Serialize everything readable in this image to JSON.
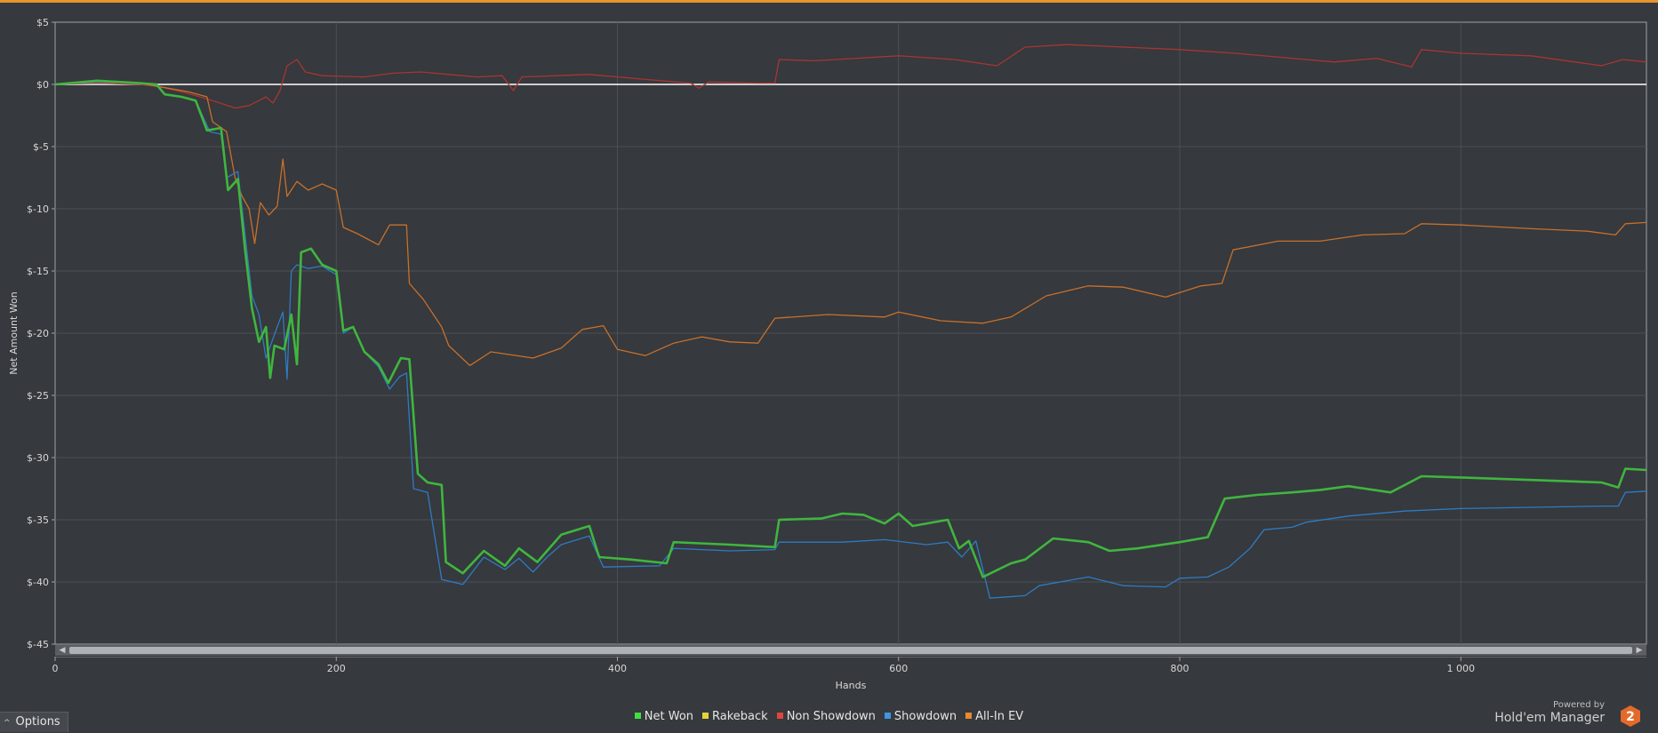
{
  "chart_data": {
    "type": "line",
    "xlabel": "Hands",
    "ylabel": "Net Amount Won",
    "xlim": [
      0,
      1132
    ],
    "ylim": [
      -45,
      5
    ],
    "x_ticks": [
      0,
      200,
      400,
      600,
      800,
      1000
    ],
    "x_tick_labels": [
      "0",
      "200",
      "400",
      "600",
      "800",
      "1 000"
    ],
    "y_ticks": [
      5,
      0,
      -5,
      -10,
      -15,
      -20,
      -25,
      -30,
      -35,
      -40,
      -45
    ],
    "y_tick_labels": [
      "$5",
      "$0",
      "$-5",
      "$-10",
      "$-15",
      "$-20",
      "$-25",
      "$-30",
      "$-35",
      "$-40",
      "$-45"
    ],
    "grid": true,
    "legend_position": "bottom-center",
    "series": [
      {
        "name": "Non Showdown",
        "color": "#a83532",
        "width": 1.3,
        "points": [
          [
            0,
            0
          ],
          [
            30,
            0.1
          ],
          [
            60,
            0
          ],
          [
            75,
            -0.2
          ],
          [
            90,
            -0.6
          ],
          [
            100,
            -0.9
          ],
          [
            112,
            -1.3
          ],
          [
            120,
            -1.6
          ],
          [
            128,
            -1.9
          ],
          [
            138,
            -1.7
          ],
          [
            145,
            -1.3
          ],
          [
            150,
            -1.0
          ],
          [
            155,
            -1.5
          ],
          [
            160,
            -0.5
          ],
          [
            165,
            1.5
          ],
          [
            172,
            2.0
          ],
          [
            178,
            1.0
          ],
          [
            190,
            0.7
          ],
          [
            220,
            0.6
          ],
          [
            240,
            0.9
          ],
          [
            260,
            1.0
          ],
          [
            300,
            0.6
          ],
          [
            318,
            0.7
          ],
          [
            326,
            -0.5
          ],
          [
            332,
            0.6
          ],
          [
            380,
            0.8
          ],
          [
            420,
            0.4
          ],
          [
            452,
            0.1
          ],
          [
            458,
            -0.3
          ],
          [
            465,
            0.2
          ],
          [
            500,
            0.1
          ],
          [
            512,
            0.1
          ],
          [
            515,
            2.0
          ],
          [
            540,
            1.9
          ],
          [
            570,
            2.1
          ],
          [
            600,
            2.3
          ],
          [
            640,
            2.0
          ],
          [
            670,
            1.5
          ],
          [
            690,
            3.0
          ],
          [
            720,
            3.2
          ],
          [
            760,
            3.0
          ],
          [
            800,
            2.8
          ],
          [
            840,
            2.5
          ],
          [
            880,
            2.1
          ],
          [
            910,
            1.8
          ],
          [
            940,
            2.1
          ],
          [
            965,
            1.4
          ],
          [
            972,
            2.8
          ],
          [
            1000,
            2.5
          ],
          [
            1050,
            2.3
          ],
          [
            1100,
            1.5
          ],
          [
            1115,
            2.0
          ],
          [
            1132,
            1.8
          ]
        ]
      },
      {
        "name": "All-In EV",
        "color": "#c8702b",
        "width": 1.3,
        "points": [
          [
            0,
            0
          ],
          [
            30,
            0.2
          ],
          [
            60,
            0.1
          ],
          [
            80,
            -0.3
          ],
          [
            95,
            -0.6
          ],
          [
            108,
            -1.0
          ],
          [
            112,
            -3.0
          ],
          [
            122,
            -3.8
          ],
          [
            128,
            -7.5
          ],
          [
            133,
            -9.0
          ],
          [
            138,
            -10.0
          ],
          [
            142,
            -12.8
          ],
          [
            146,
            -9.5
          ],
          [
            152,
            -10.5
          ],
          [
            158,
            -9.8
          ],
          [
            162,
            -6.0
          ],
          [
            165,
            -9.0
          ],
          [
            172,
            -7.8
          ],
          [
            180,
            -8.5
          ],
          [
            190,
            -8.0
          ],
          [
            200,
            -8.5
          ],
          [
            205,
            -11.5
          ],
          [
            215,
            -12.0
          ],
          [
            230,
            -12.9
          ],
          [
            238,
            -11.3
          ],
          [
            250,
            -11.3
          ],
          [
            252,
            -16.0
          ],
          [
            262,
            -17.3
          ],
          [
            275,
            -19.5
          ],
          [
            280,
            -21.0
          ],
          [
            295,
            -22.6
          ],
          [
            310,
            -21.5
          ],
          [
            340,
            -22.0
          ],
          [
            360,
            -21.2
          ],
          [
            375,
            -19.7
          ],
          [
            390,
            -19.4
          ],
          [
            400,
            -21.3
          ],
          [
            420,
            -21.8
          ],
          [
            440,
            -20.8
          ],
          [
            460,
            -20.3
          ],
          [
            480,
            -20.7
          ],
          [
            500,
            -20.8
          ],
          [
            512,
            -18.8
          ],
          [
            550,
            -18.5
          ],
          [
            590,
            -18.7
          ],
          [
            600,
            -18.3
          ],
          [
            630,
            -19.0
          ],
          [
            660,
            -19.2
          ],
          [
            680,
            -18.7
          ],
          [
            705,
            -17.0
          ],
          [
            735,
            -16.2
          ],
          [
            760,
            -16.3
          ],
          [
            790,
            -17.1
          ],
          [
            815,
            -16.2
          ],
          [
            830,
            -16.0
          ],
          [
            838,
            -13.3
          ],
          [
            870,
            -12.6
          ],
          [
            900,
            -12.6
          ],
          [
            930,
            -12.1
          ],
          [
            960,
            -12.0
          ],
          [
            972,
            -11.2
          ],
          [
            1000,
            -11.3
          ],
          [
            1050,
            -11.6
          ],
          [
            1090,
            -11.8
          ],
          [
            1110,
            -12.1
          ],
          [
            1117,
            -11.2
          ],
          [
            1132,
            -11.1
          ]
        ]
      },
      {
        "name": "Showdown",
        "color": "#2e7bc4",
        "width": 1.3,
        "points": [
          [
            0,
            0
          ],
          [
            30,
            0.2
          ],
          [
            60,
            0.1
          ],
          [
            72,
            0
          ],
          [
            78,
            -0.8
          ],
          [
            90,
            -1.0
          ],
          [
            100,
            -1.3
          ],
          [
            110,
            -3.8
          ],
          [
            118,
            -4.0
          ],
          [
            122,
            -7.5
          ],
          [
            130,
            -7.0
          ],
          [
            135,
            -12.0
          ],
          [
            140,
            -17.0
          ],
          [
            145,
            -18.5
          ],
          [
            150,
            -22.0
          ],
          [
            158,
            -19.5
          ],
          [
            162,
            -18.3
          ],
          [
            165,
            -23.7
          ],
          [
            168,
            -15.0
          ],
          [
            172,
            -14.5
          ],
          [
            180,
            -14.8
          ],
          [
            190,
            -14.6
          ],
          [
            200,
            -15.3
          ],
          [
            205,
            -20.0
          ],
          [
            212,
            -19.5
          ],
          [
            220,
            -21.5
          ],
          [
            230,
            -22.7
          ],
          [
            238,
            -24.5
          ],
          [
            245,
            -23.5
          ],
          [
            250,
            -23.2
          ],
          [
            255,
            -32.5
          ],
          [
            265,
            -32.8
          ],
          [
            275,
            -39.8
          ],
          [
            290,
            -40.2
          ],
          [
            305,
            -38.0
          ],
          [
            320,
            -39.0
          ],
          [
            330,
            -38.1
          ],
          [
            340,
            -39.2
          ],
          [
            350,
            -38.0
          ],
          [
            360,
            -37.0
          ],
          [
            380,
            -36.3
          ],
          [
            390,
            -38.8
          ],
          [
            430,
            -38.7
          ],
          [
            440,
            -37.3
          ],
          [
            480,
            -37.5
          ],
          [
            512,
            -37.4
          ],
          [
            515,
            -36.8
          ],
          [
            560,
            -36.8
          ],
          [
            590,
            -36.6
          ],
          [
            620,
            -37.0
          ],
          [
            635,
            -36.8
          ],
          [
            645,
            -38.0
          ],
          [
            655,
            -36.7
          ],
          [
            665,
            -41.3
          ],
          [
            690,
            -41.1
          ],
          [
            700,
            -40.3
          ],
          [
            735,
            -39.6
          ],
          [
            760,
            -40.3
          ],
          [
            790,
            -40.4
          ],
          [
            800,
            -39.7
          ],
          [
            820,
            -39.6
          ],
          [
            835,
            -38.8
          ],
          [
            850,
            -37.3
          ],
          [
            860,
            -35.8
          ],
          [
            880,
            -35.6
          ],
          [
            890,
            -35.2
          ],
          [
            920,
            -34.7
          ],
          [
            960,
            -34.3
          ],
          [
            1000,
            -34.1
          ],
          [
            1050,
            -34.0
          ],
          [
            1100,
            -33.9
          ],
          [
            1112,
            -33.9
          ],
          [
            1117,
            -32.8
          ],
          [
            1132,
            -32.7
          ]
        ]
      },
      {
        "name": "Net Won",
        "color": "#3fb63f",
        "width": 2.6,
        "points": [
          [
            0,
            0
          ],
          [
            30,
            0.3
          ],
          [
            60,
            0.1
          ],
          [
            72,
            0
          ],
          [
            78,
            -0.8
          ],
          [
            90,
            -1.0
          ],
          [
            100,
            -1.3
          ],
          [
            108,
            -3.7
          ],
          [
            118,
            -3.5
          ],
          [
            123,
            -8.5
          ],
          [
            130,
            -7.6
          ],
          [
            135,
            -13.2
          ],
          [
            140,
            -18.0
          ],
          [
            145,
            -20.7
          ],
          [
            150,
            -19.5
          ],
          [
            153,
            -23.6
          ],
          [
            156,
            -21.0
          ],
          [
            163,
            -21.3
          ],
          [
            168,
            -18.5
          ],
          [
            172,
            -22.5
          ],
          [
            175,
            -13.5
          ],
          [
            182,
            -13.2
          ],
          [
            190,
            -14.5
          ],
          [
            200,
            -15.0
          ],
          [
            205,
            -19.8
          ],
          [
            212,
            -19.5
          ],
          [
            220,
            -21.5
          ],
          [
            230,
            -22.5
          ],
          [
            237,
            -24.0
          ],
          [
            246,
            -22.0
          ],
          [
            252,
            -22.1
          ],
          [
            258,
            -31.3
          ],
          [
            265,
            -32.0
          ],
          [
            275,
            -32.2
          ],
          [
            278,
            -38.4
          ],
          [
            290,
            -39.3
          ],
          [
            305,
            -37.5
          ],
          [
            320,
            -38.7
          ],
          [
            330,
            -37.3
          ],
          [
            343,
            -38.4
          ],
          [
            350,
            -37.5
          ],
          [
            360,
            -36.2
          ],
          [
            380,
            -35.5
          ],
          [
            387,
            -38.0
          ],
          [
            410,
            -38.2
          ],
          [
            435,
            -38.5
          ],
          [
            440,
            -36.8
          ],
          [
            480,
            -37.0
          ],
          [
            512,
            -37.2
          ],
          [
            515,
            -35.0
          ],
          [
            545,
            -34.9
          ],
          [
            560,
            -34.5
          ],
          [
            575,
            -34.6
          ],
          [
            590,
            -35.3
          ],
          [
            600,
            -34.5
          ],
          [
            610,
            -35.5
          ],
          [
            635,
            -35.0
          ],
          [
            643,
            -37.3
          ],
          [
            650,
            -36.7
          ],
          [
            660,
            -39.6
          ],
          [
            680,
            -38.5
          ],
          [
            690,
            -38.2
          ],
          [
            710,
            -36.5
          ],
          [
            735,
            -36.8
          ],
          [
            750,
            -37.5
          ],
          [
            770,
            -37.3
          ],
          [
            800,
            -36.8
          ],
          [
            820,
            -36.4
          ],
          [
            832,
            -33.3
          ],
          [
            855,
            -33.0
          ],
          [
            880,
            -32.8
          ],
          [
            900,
            -32.6
          ],
          [
            920,
            -32.3
          ],
          [
            950,
            -32.8
          ],
          [
            972,
            -31.5
          ],
          [
            1000,
            -31.6
          ],
          [
            1050,
            -31.8
          ],
          [
            1100,
            -32.0
          ],
          [
            1112,
            -32.4
          ],
          [
            1117,
            -30.9
          ],
          [
            1132,
            -31.0
          ]
        ]
      },
      {
        "name": "Rakeback",
        "color": "#e5c83a",
        "width": 1.3,
        "points": []
      }
    ],
    "legend": [
      {
        "name": "Net Won",
        "color": "#3fe03f"
      },
      {
        "name": "Rakeback",
        "color": "#e5d23a"
      },
      {
        "name": "Non Showdown",
        "color": "#e0443e"
      },
      {
        "name": "Showdown",
        "color": "#3f95e0"
      },
      {
        "name": "All-In EV",
        "color": "#e8892e"
      }
    ]
  },
  "options_label": "Options",
  "branding": {
    "powered_by": "Powered by",
    "name": "Hold'em Manager",
    "logo_digit": "2"
  },
  "colors": {
    "accent": "#e8952e",
    "background": "#36393d",
    "zero_line": "#ffffff"
  }
}
